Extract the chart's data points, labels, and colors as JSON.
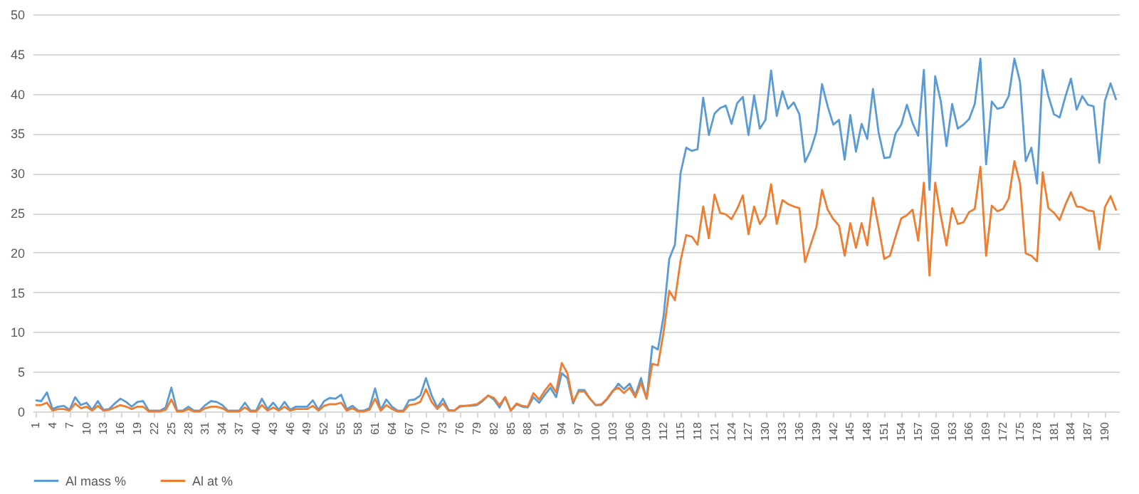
{
  "chart_data": {
    "type": "line",
    "x": [
      1,
      2,
      3,
      4,
      5,
      6,
      7,
      8,
      9,
      10,
      11,
      12,
      13,
      14,
      15,
      16,
      17,
      18,
      19,
      20,
      21,
      22,
      23,
      24,
      25,
      26,
      27,
      28,
      29,
      30,
      31,
      32,
      33,
      34,
      35,
      36,
      37,
      38,
      39,
      40,
      41,
      42,
      43,
      44,
      45,
      46,
      47,
      48,
      49,
      50,
      51,
      52,
      53,
      54,
      55,
      56,
      57,
      58,
      59,
      60,
      61,
      62,
      63,
      64,
      65,
      66,
      67,
      68,
      69,
      70,
      71,
      72,
      73,
      74,
      75,
      76,
      77,
      78,
      79,
      80,
      81,
      82,
      83,
      84,
      85,
      86,
      87,
      88,
      89,
      90,
      91,
      92,
      93,
      94,
      95,
      96,
      97,
      98,
      99,
      100,
      101,
      102,
      103,
      104,
      105,
      106,
      107,
      108,
      109,
      110,
      111,
      112,
      113,
      114,
      115,
      116,
      117,
      118,
      119,
      120,
      121,
      122,
      123,
      124,
      125,
      126,
      127,
      128,
      129,
      130,
      131,
      132,
      133,
      134,
      135,
      136,
      137,
      138,
      139,
      140,
      141,
      142,
      143,
      144,
      145,
      146,
      147,
      148,
      149,
      150,
      151,
      152,
      153,
      154,
      155,
      156,
      157,
      158,
      159,
      160,
      161,
      162,
      163,
      164,
      165,
      166,
      167,
      168,
      169,
      170,
      171,
      172,
      173,
      174,
      175,
      176,
      177,
      178,
      179,
      180,
      181,
      182,
      183,
      184,
      185,
      186,
      187,
      188,
      189,
      190,
      191,
      192
    ],
    "series": [
      {
        "name": "Al mass %",
        "color": "#5b9bd5",
        "values": [
          1.4,
          1.3,
          2.4,
          0.3,
          0.6,
          0.7,
          0.2,
          1.8,
          0.8,
          1.1,
          0.2,
          1.3,
          0.2,
          0.3,
          1.0,
          1.6,
          1.2,
          0.6,
          1.2,
          1.3,
          0.1,
          0.1,
          0.1,
          0.5,
          3.0,
          0.1,
          0.1,
          0.6,
          0.1,
          0.1,
          0.8,
          1.3,
          1.2,
          0.8,
          0.1,
          0.1,
          0.1,
          1.1,
          0.1,
          0.1,
          1.6,
          0.3,
          1.1,
          0.2,
          1.2,
          0.2,
          0.6,
          0.6,
          0.6,
          1.4,
          0.2,
          1.3,
          1.7,
          1.6,
          2.1,
          0.3,
          0.7,
          0.1,
          0.1,
          0.4,
          2.9,
          0.2,
          1.5,
          0.6,
          0.1,
          0.1,
          1.4,
          1.5,
          2.0,
          4.2,
          2.0,
          0.5,
          1.6,
          0.2,
          0.1,
          0.6,
          0.7,
          0.7,
          0.8,
          1.3,
          2.0,
          1.5,
          0.5,
          1.8,
          0.1,
          0.9,
          0.6,
          0.5,
          1.8,
          1.1,
          2.1,
          3.0,
          1.8,
          4.8,
          4.2,
          1.0,
          2.7,
          2.7,
          1.6,
          0.8,
          0.8,
          1.5,
          2.5,
          3.5,
          2.8,
          3.5,
          2.0,
          4.2,
          1.6,
          8.2,
          7.8,
          12.0,
          19.2,
          21.0,
          30.0,
          33.2,
          32.8,
          33.0,
          39.5,
          34.8,
          37.5,
          38.2,
          38.5,
          36.2,
          38.8,
          39.6,
          34.8,
          39.8,
          35.6,
          36.7,
          42.9,
          37.2,
          40.3,
          38.1,
          38.9,
          37.4,
          31.4,
          32.9,
          35.2,
          41.2,
          38.4,
          36.1,
          36.7,
          31.7,
          37.3,
          32.7,
          36.2,
          34.3,
          40.6,
          35.1,
          31.9,
          32.0,
          35.0,
          36.1,
          38.6,
          36.3,
          34.7,
          43.0,
          27.9,
          42.2,
          39.0,
          33.4,
          38.7,
          35.6,
          36.1,
          36.8,
          38.7,
          44.4,
          31.1,
          39.0,
          38.1,
          38.3,
          39.7,
          44.4,
          41.5,
          31.5,
          33.2,
          28.7,
          43.0,
          39.7,
          37.4,
          37.0,
          39.6,
          41.9,
          38.0,
          39.7,
          38.6,
          38.4,
          31.3,
          39.1,
          41.3,
          39.2
        ]
      },
      {
        "name": "Al at %",
        "color": "#ed7d31",
        "values": [
          0.8,
          0.8,
          1.1,
          0.1,
          0.3,
          0.3,
          0.1,
          1.0,
          0.4,
          0.6,
          0.1,
          0.7,
          0.1,
          0.2,
          0.5,
          0.8,
          0.6,
          0.3,
          0.6,
          0.6,
          0.0,
          0.0,
          0.0,
          0.2,
          1.5,
          0.0,
          0.0,
          0.3,
          0.0,
          0.0,
          0.4,
          0.6,
          0.6,
          0.4,
          0.0,
          0.0,
          0.0,
          0.5,
          0.0,
          0.0,
          0.8,
          0.1,
          0.5,
          0.1,
          0.6,
          0.1,
          0.3,
          0.3,
          0.3,
          0.7,
          0.1,
          0.7,
          0.9,
          0.9,
          1.1,
          0.1,
          0.4,
          0.0,
          0.0,
          0.2,
          1.6,
          0.1,
          0.8,
          0.3,
          0.0,
          0.0,
          0.8,
          0.9,
          1.2,
          2.8,
          1.2,
          0.3,
          1.0,
          0.1,
          0.1,
          0.7,
          0.7,
          0.8,
          0.9,
          1.4,
          2.0,
          1.7,
          0.8,
          1.8,
          0.1,
          1.0,
          0.7,
          0.6,
          2.3,
          1.5,
          2.6,
          3.5,
          2.4,
          6.1,
          4.8,
          1.2,
          2.5,
          2.5,
          1.6,
          0.8,
          0.9,
          1.6,
          2.6,
          3.0,
          2.3,
          3.0,
          1.8,
          3.6,
          1.6,
          6.0,
          5.8,
          10.0,
          15.2,
          14.0,
          19.0,
          22.2,
          22.0,
          21.0,
          25.8,
          21.8,
          27.3,
          25.0,
          24.8,
          24.2,
          25.5,
          27.2,
          22.3,
          25.8,
          23.6,
          24.6,
          28.6,
          23.6,
          26.6,
          26.1,
          25.8,
          25.6,
          18.8,
          21.0,
          23.2,
          27.9,
          25.4,
          24.2,
          23.4,
          19.6,
          23.7,
          20.6,
          23.7,
          20.9,
          26.9,
          23.2,
          19.2,
          19.6,
          22.0,
          24.3,
          24.7,
          25.4,
          21.5,
          28.8,
          17.1,
          28.8,
          24.6,
          20.9,
          25.6,
          23.6,
          23.8,
          25.1,
          25.5,
          30.8,
          19.6,
          25.9,
          25.2,
          25.5,
          26.8,
          31.5,
          28.7,
          19.9,
          19.6,
          18.9,
          30.1,
          25.6,
          25.0,
          24.1,
          26.0,
          27.6,
          25.8,
          25.7,
          25.3,
          25.2,
          20.4,
          25.7,
          27.1,
          25.3
        ]
      }
    ],
    "xlim": [
      0.5,
      192.5
    ],
    "xticks": [
      1,
      4,
      7,
      10,
      13,
      16,
      19,
      22,
      25,
      28,
      31,
      34,
      37,
      40,
      43,
      46,
      49,
      52,
      55,
      58,
      61,
      64,
      67,
      70,
      73,
      76,
      79,
      82,
      85,
      88,
      91,
      94,
      97,
      100,
      103,
      106,
      109,
      112,
      115,
      118,
      121,
      124,
      127,
      130,
      133,
      136,
      139,
      142,
      145,
      148,
      151,
      154,
      157,
      160,
      163,
      166,
      169,
      172,
      175,
      178,
      181,
      184,
      187,
      190
    ],
    "ylim": [
      0,
      50
    ],
    "yticks": [
      0,
      5,
      10,
      15,
      20,
      25,
      30,
      35,
      40,
      45,
      50
    ],
    "grid": "y",
    "legend": "bottom",
    "marker": "none",
    "line_style": "solid"
  }
}
